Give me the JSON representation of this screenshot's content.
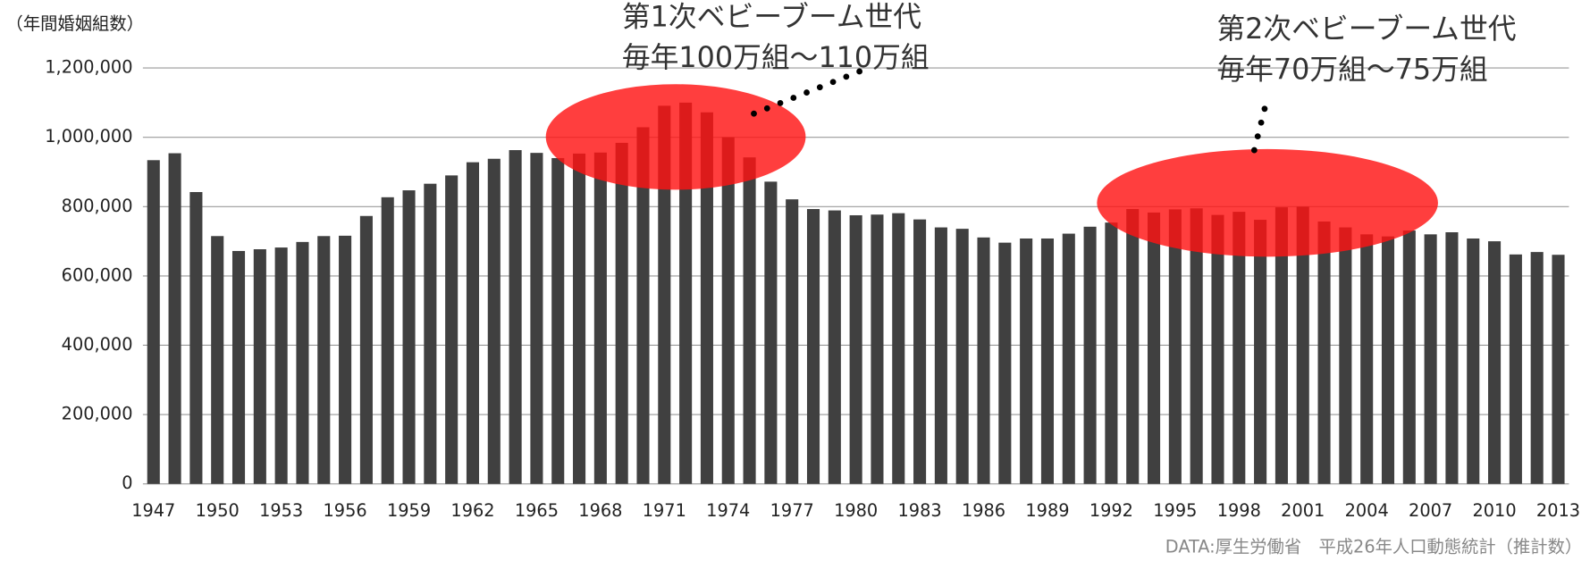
{
  "chart_data": {
    "type": "bar",
    "y_axis_label": "（年間婚姻組数）",
    "source": "DATA:厚生労働省　平成26年人口動態統計（推計数）",
    "annotations": [
      [
        "第1次ベビーブーム世代",
        "毎年100万組～110万組"
      ],
      [
        "第2次ベビーブーム世代",
        "毎年70万組～75万組"
      ]
    ],
    "categories": [
      "1947",
      null,
      null,
      "1950",
      null,
      null,
      "1953",
      null,
      null,
      "1956",
      null,
      null,
      "1959",
      null,
      null,
      "1962",
      null,
      null,
      "1965",
      null,
      null,
      "1968",
      null,
      null,
      "1971",
      null,
      null,
      "1974",
      null,
      null,
      "1977",
      null,
      null,
      "1980",
      null,
      null,
      "1983",
      null,
      null,
      "1986",
      null,
      null,
      "1989",
      null,
      null,
      "1992",
      null,
      null,
      "1995",
      null,
      null,
      "1998",
      null,
      null,
      "2001",
      null,
      null,
      "2004",
      null,
      null,
      "2007",
      null,
      null,
      "2010",
      null,
      null,
      "2013"
    ],
    "values": [
      934000,
      954000,
      842000,
      715000,
      672000,
      677000,
      682000,
      698000,
      715000,
      716000,
      773000,
      827000,
      847000,
      866000,
      890000,
      928000,
      938000,
      963000,
      955000,
      940000,
      953000,
      956000,
      984000,
      1029000,
      1091000,
      1100000,
      1072000,
      1000000,
      942000,
      872000,
      821000,
      793000,
      789000,
      775000,
      777000,
      781000,
      763000,
      740000,
      736000,
      711000,
      696000,
      708000,
      708000,
      722000,
      742000,
      754000,
      793000,
      783000,
      792000,
      795000,
      776000,
      785000,
      762000,
      798000,
      800000,
      757000,
      740000,
      720000,
      714000,
      731000,
      720000,
      726000,
      708000,
      700000,
      662000,
      669000,
      661000
    ],
    "color": "#404040",
    "ylim": [
      0,
      1200000
    ],
    "yticks": [
      0,
      {
        "value": 200000,
        "label": "200,000"
      },
      {
        "value": 400000,
        "label": "400,000"
      },
      {
        "value": 600000,
        "label": "600,000"
      },
      {
        "value": 800000,
        "label": "800,000"
      },
      {
        "value": 1000000,
        "label": "1,000,000"
      },
      {
        "value": 1200000,
        "label": "1,200,000"
      }
    ],
    "grid": true
  }
}
